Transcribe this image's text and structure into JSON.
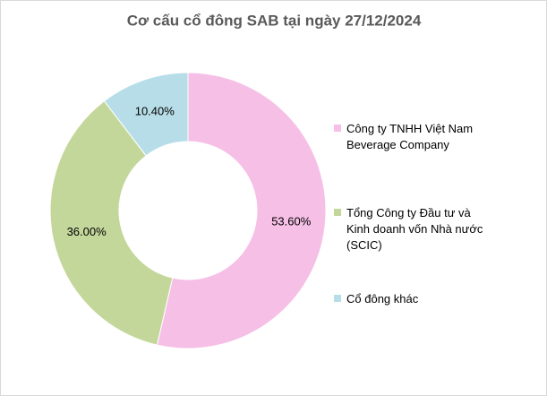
{
  "chart_data": {
    "type": "pie",
    "title": "Cơ cấu cổ đông SAB tại ngày 27/12/2024",
    "series": [
      {
        "name": "Công ty TNHH Việt Nam Beverage Company",
        "color": "#f6bfe6",
        "values": [
          53.6
        ],
        "value_labels": [
          "53.60%"
        ]
      },
      {
        "name": "Tổng Công ty Đầu tư và Kinh doanh vốn Nhà nước (SCIC)",
        "color": "#c4d79b",
        "values": [
          36.0
        ],
        "value_labels": [
          "36.00%"
        ]
      },
      {
        "name": "Cổ đông khác",
        "color": "#b7dee8",
        "values": [
          10.4
        ],
        "value_labels": [
          "10.40%"
        ]
      }
    ],
    "legend": "right"
  }
}
